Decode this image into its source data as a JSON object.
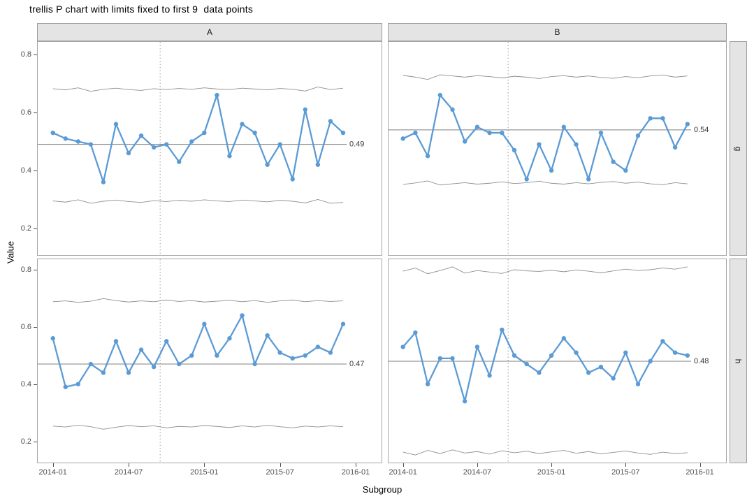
{
  "title": "trellis P chart with limits fixed to first 9  data points",
  "chart_data": {
    "type": "line",
    "chart_kind": "p-control-chart-trellis",
    "title": "trellis P chart with limits fixed to first 9  data points",
    "xlabel": "Subgroup",
    "ylabel": "Value",
    "facet_cols": [
      "A",
      "B"
    ],
    "facet_rows": [
      "g",
      "h"
    ],
    "x": [
      "2014-01",
      "2014-02",
      "2014-03",
      "2014-04",
      "2014-05",
      "2014-06",
      "2014-07",
      "2014-08",
      "2014-09",
      "2014-10",
      "2014-11",
      "2014-12",
      "2015-01",
      "2015-02",
      "2015-03",
      "2015-04",
      "2015-05",
      "2015-06",
      "2015-07",
      "2015-08",
      "2015-09",
      "2015-10",
      "2015-11",
      "2015-12"
    ],
    "x_tick_labels": [
      "2014-01",
      "2014-07",
      "2015-01",
      "2015-07",
      "2016-01"
    ],
    "y_ticks": [
      0.8,
      0.6,
      0.4,
      0.2
    ],
    "ylim": [
      0.13,
      0.86
    ],
    "grid": false,
    "legend": "none",
    "freeze_line_position": 8.5,
    "freeze_note_points": 9,
    "colors": {
      "series_line": "#5b9bd5",
      "limit_line": "#8f8f8f",
      "center_line": "#7f7f7f",
      "freeze_line": "#9b9b9b",
      "panel_border": "#a6a6a6",
      "strip_fill": "#e4e4e4",
      "label_text": "#383838",
      "tick_text": "#4d4d4d"
    },
    "panels": [
      {
        "col": "A",
        "row": "g",
        "center": 0.49,
        "center_label": "0.49",
        "values": [
          0.53,
          0.51,
          0.5,
          0.49,
          0.36,
          0.56,
          0.46,
          0.52,
          0.48,
          0.49,
          0.43,
          0.5,
          0.53,
          0.66,
          0.45,
          0.56,
          0.53,
          0.42,
          0.49,
          0.37,
          0.61,
          0.42,
          0.57,
          0.53
        ],
        "ucl": [
          0.682,
          0.678,
          0.685,
          0.673,
          0.68,
          0.684,
          0.679,
          0.676,
          0.682,
          0.679,
          0.683,
          0.68,
          0.685,
          0.681,
          0.679,
          0.684,
          0.681,
          0.678,
          0.683,
          0.68,
          0.674,
          0.688,
          0.679,
          0.684
        ],
        "lcl": [
          0.295,
          0.291,
          0.299,
          0.287,
          0.294,
          0.298,
          0.293,
          0.29,
          0.296,
          0.293,
          0.297,
          0.294,
          0.299,
          0.295,
          0.293,
          0.298,
          0.295,
          0.292,
          0.297,
          0.294,
          0.288,
          0.3,
          0.287,
          0.29
        ]
      },
      {
        "col": "B",
        "row": "g",
        "center": 0.54,
        "center_label": "0.54",
        "values": [
          0.51,
          0.53,
          0.45,
          0.66,
          0.61,
          0.5,
          0.55,
          0.53,
          0.53,
          0.47,
          0.37,
          0.49,
          0.4,
          0.55,
          0.49,
          0.37,
          0.53,
          0.43,
          0.4,
          0.52,
          0.58,
          0.58,
          0.48,
          0.56
        ],
        "ucl": [
          0.728,
          0.722,
          0.714,
          0.73,
          0.726,
          0.722,
          0.727,
          0.724,
          0.719,
          0.725,
          0.722,
          0.717,
          0.724,
          0.727,
          0.722,
          0.726,
          0.721,
          0.718,
          0.724,
          0.72,
          0.726,
          0.729,
          0.722,
          0.726
        ],
        "lcl": [
          0.352,
          0.357,
          0.364,
          0.35,
          0.354,
          0.358,
          0.353,
          0.356,
          0.361,
          0.355,
          0.358,
          0.363,
          0.356,
          0.353,
          0.358,
          0.354,
          0.359,
          0.362,
          0.356,
          0.36,
          0.354,
          0.351,
          0.358,
          0.354
        ]
      },
      {
        "col": "A",
        "row": "h",
        "center": 0.47,
        "center_label": "0.47",
        "values": [
          0.56,
          0.39,
          0.4,
          0.47,
          0.44,
          0.55,
          0.44,
          0.52,
          0.46,
          0.55,
          0.47,
          0.5,
          0.61,
          0.5,
          0.56,
          0.64,
          0.47,
          0.57,
          0.51,
          0.49,
          0.5,
          0.53,
          0.51,
          0.61
        ],
        "ucl": [
          0.688,
          0.691,
          0.686,
          0.69,
          0.699,
          0.692,
          0.687,
          0.691,
          0.688,
          0.694,
          0.689,
          0.692,
          0.687,
          0.69,
          0.693,
          0.688,
          0.692,
          0.686,
          0.691,
          0.694,
          0.688,
          0.692,
          0.689,
          0.691
        ],
        "lcl": [
          0.253,
          0.25,
          0.256,
          0.251,
          0.242,
          0.249,
          0.255,
          0.251,
          0.254,
          0.247,
          0.252,
          0.25,
          0.255,
          0.252,
          0.248,
          0.254,
          0.25,
          0.256,
          0.251,
          0.247,
          0.253,
          0.25,
          0.254,
          0.251
        ]
      },
      {
        "col": "B",
        "row": "h",
        "center": 0.48,
        "center_label": "0.48",
        "values": [
          0.53,
          0.58,
          0.4,
          0.49,
          0.49,
          0.34,
          0.53,
          0.43,
          0.59,
          0.5,
          0.47,
          0.44,
          0.5,
          0.56,
          0.51,
          0.44,
          0.46,
          0.42,
          0.51,
          0.4,
          0.48,
          0.55,
          0.51,
          0.5
        ],
        "ucl": [
          0.795,
          0.806,
          0.786,
          0.797,
          0.81,
          0.788,
          0.797,
          0.792,
          0.787,
          0.8,
          0.796,
          0.794,
          0.798,
          0.793,
          0.799,
          0.795,
          0.789,
          0.796,
          0.802,
          0.797,
          0.8,
          0.806,
          0.802,
          0.81
        ],
        "lcl": [
          0.162,
          0.152,
          0.168,
          0.157,
          0.17,
          0.159,
          0.164,
          0.155,
          0.167,
          0.16,
          0.165,
          0.157,
          0.163,
          0.168,
          0.158,
          0.164,
          0.156,
          0.161,
          0.166,
          0.159,
          0.154,
          0.162,
          0.157,
          0.16
        ]
      }
    ]
  }
}
